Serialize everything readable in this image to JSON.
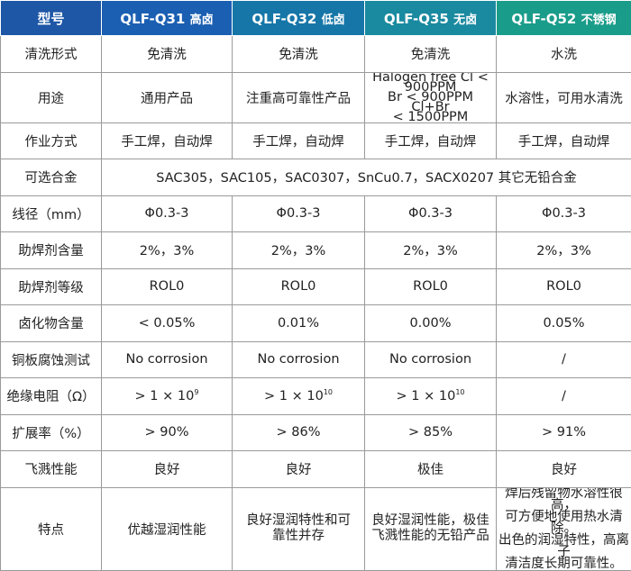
{
  "header": {
    "label": "型号",
    "q31": {
      "model": "QLF-Q31",
      "suffix": "高卤"
    },
    "q32": {
      "model": "QLF-Q32",
      "suffix": "低卤"
    },
    "q35": {
      "model": "QLF-Q35",
      "suffix": "无卤"
    },
    "q52": {
      "model": "QLF-Q52",
      "suffix": "不锈钢"
    }
  },
  "colors": {
    "header_label": "#1e57a6",
    "header_q31": "#1b5fb2",
    "header_q32": "#1676a8",
    "header_q35": "#1a8aa0",
    "header_q52": "#1a9c8a",
    "border": "#9a9a9a"
  },
  "rows": {
    "clean": {
      "label": "清洗形式",
      "q31": "免清洗",
      "q32": "免清洗",
      "q35": "免清洗",
      "q52": "水洗"
    },
    "use": {
      "label": "用途",
      "q31": "通用产品",
      "q32": "注重高可靠性产品",
      "q35_line1": "Halogen free Cl < 900PPM",
      "q35_line2": "Br < 900PPM Cl+Br",
      "q35_line3": "< 1500PPM",
      "q52": "水溶性，可用水清洗"
    },
    "method": {
      "label": "作业方式",
      "q31": "手工焊，自动焊",
      "q32": "手工焊，自动焊",
      "q35": "手工焊，自动焊",
      "q52": "手工焊，自动焊"
    },
    "alloy": {
      "label": "可选合金",
      "value": "SAC305，SAC105，SAC0307，SnCu0.7，SACX0207 其它无铅合金"
    },
    "diameter": {
      "label": "线径（mm）",
      "q31": "Φ0.3-3",
      "q32": "Φ0.3-3",
      "q35": "Φ0.3-3",
      "q52": "Φ0.3-3"
    },
    "flux": {
      "label": "助焊剂含量",
      "q31": "2%，3%",
      "q32": "2%，3%",
      "q35": "2%，3%",
      "q52": "2%，3%"
    },
    "grade": {
      "label": "助焊剂等级",
      "q31": "ROL0",
      "q32": "ROL0",
      "q35": "ROL0",
      "q52": "ROL0"
    },
    "halide": {
      "label": "卤化物含量",
      "q31": "< 0.05%",
      "q32": "0.01%",
      "q35": "0.00%",
      "q52": "0.05%"
    },
    "corrosion": {
      "label": "铜板腐蚀测试",
      "q31": "No corrosion",
      "q32": "No corrosion",
      "q35": "No corrosion",
      "q52": "/"
    },
    "insulation": {
      "label": "绝缘电阻（Ω）",
      "q31_base": "> 1 × 10",
      "q31_exp": "9",
      "q32_base": "> 1 × 10",
      "q32_exp": "10",
      "q35_base": "> 1 × 10",
      "q35_exp": "10",
      "q52": "/"
    },
    "spread": {
      "label": "扩展率（%）",
      "q31": "> 90%",
      "q32": "> 86%",
      "q35": "> 85%",
      "q52": "> 91%"
    },
    "spatter": {
      "label": "飞溅性能",
      "q31": "良好",
      "q32": "良好",
      "q35": "极佳",
      "q52": "良好"
    },
    "feature": {
      "label": "特点",
      "q31": "优越湿润性能",
      "q32_line1": "良好湿润特性和可",
      "q32_line2": "靠性并存",
      "q35_line1": "良好湿润性能，极佳",
      "q35_line2": "飞溅性能的无铅产品",
      "q52_line1": "焊后残留物水溶性很高，",
      "q52_line2": "可方便地使用热水清除。",
      "q52_line3": "出色的润湿特性，高离子",
      "q52_line4": "清洁度长期可靠性。"
    }
  }
}
